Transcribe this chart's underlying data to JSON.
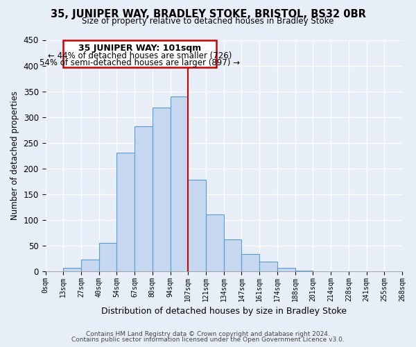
{
  "title": "35, JUNIPER WAY, BRADLEY STOKE, BRISTOL, BS32 0BR",
  "subtitle": "Size of property relative to detached houses in Bradley Stoke",
  "xlabel": "Distribution of detached houses by size in Bradley Stoke",
  "ylabel": "Number of detached properties",
  "bin_labels": [
    "0sqm",
    "13sqm",
    "27sqm",
    "40sqm",
    "54sqm",
    "67sqm",
    "80sqm",
    "94sqm",
    "107sqm",
    "121sqm",
    "134sqm",
    "147sqm",
    "161sqm",
    "174sqm",
    "188sqm",
    "201sqm",
    "214sqm",
    "228sqm",
    "241sqm",
    "255sqm",
    "268sqm"
  ],
  "bar_values": [
    0,
    6,
    22,
    55,
    230,
    282,
    318,
    340,
    178,
    110,
    62,
    33,
    19,
    7,
    1,
    0,
    0,
    0,
    0,
    0
  ],
  "bar_color": "#c5d8f0",
  "bar_edge_color": "#5b9bd5",
  "vline_x": 8,
  "vline_color": "#cc0000",
  "annotation_title": "35 JUNIPER WAY: 101sqm",
  "annotation_line1": "← 44% of detached houses are smaller (726)",
  "annotation_line2": "54% of semi-detached houses are larger (897) →",
  "annotation_box_color": "#ffffff",
  "annotation_box_edge": "#cc0000",
  "ylim": [
    0,
    450
  ],
  "footnote1": "Contains HM Land Registry data © Crown copyright and database right 2024.",
  "footnote2": "Contains public sector information licensed under the Open Government Licence v3.0.",
  "background_color": "#e8eef8",
  "grid_color": "#ffffff",
  "yticks": [
    0,
    50,
    100,
    150,
    200,
    250,
    300,
    350,
    400,
    450
  ]
}
